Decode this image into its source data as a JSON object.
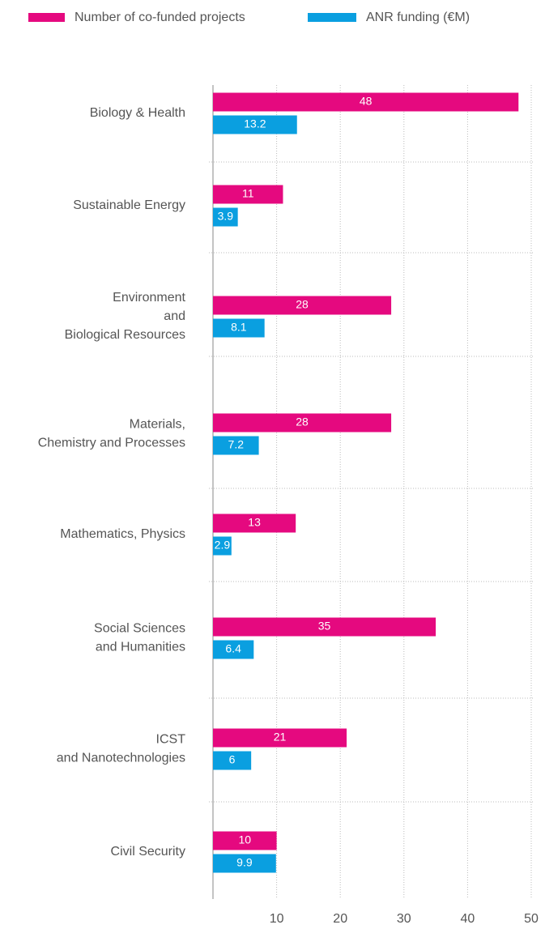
{
  "chart_data": {
    "type": "bar",
    "orientation": "horizontal",
    "categories": [
      [
        "Biology & Health"
      ],
      [
        "Sustainable Energy"
      ],
      [
        "Environment",
        "and",
        "Biological Resources"
      ],
      [
        "Materials,",
        "Chemistry and Processes"
      ],
      [
        "Mathematics, Physics"
      ],
      [
        "Social Sciences",
        "and Humanities"
      ],
      [
        "ICST",
        "and Nanotechnologies"
      ],
      [
        "Civil Security"
      ]
    ],
    "series": [
      {
        "name": "Number of co-funded projects",
        "color": "#e5097f",
        "values": [
          48,
          11,
          28,
          28,
          13,
          35,
          21,
          10
        ]
      },
      {
        "name": "ANR funding (€M)",
        "color": "#0a9fe0",
        "values": [
          13.2,
          3.9,
          8.1,
          7.2,
          2.9,
          6.4,
          6,
          9.9
        ]
      }
    ],
    "xlim": [
      0,
      50
    ],
    "xticks": [
      10,
      20,
      30,
      40,
      50
    ],
    "grid": true,
    "legend": "top"
  }
}
